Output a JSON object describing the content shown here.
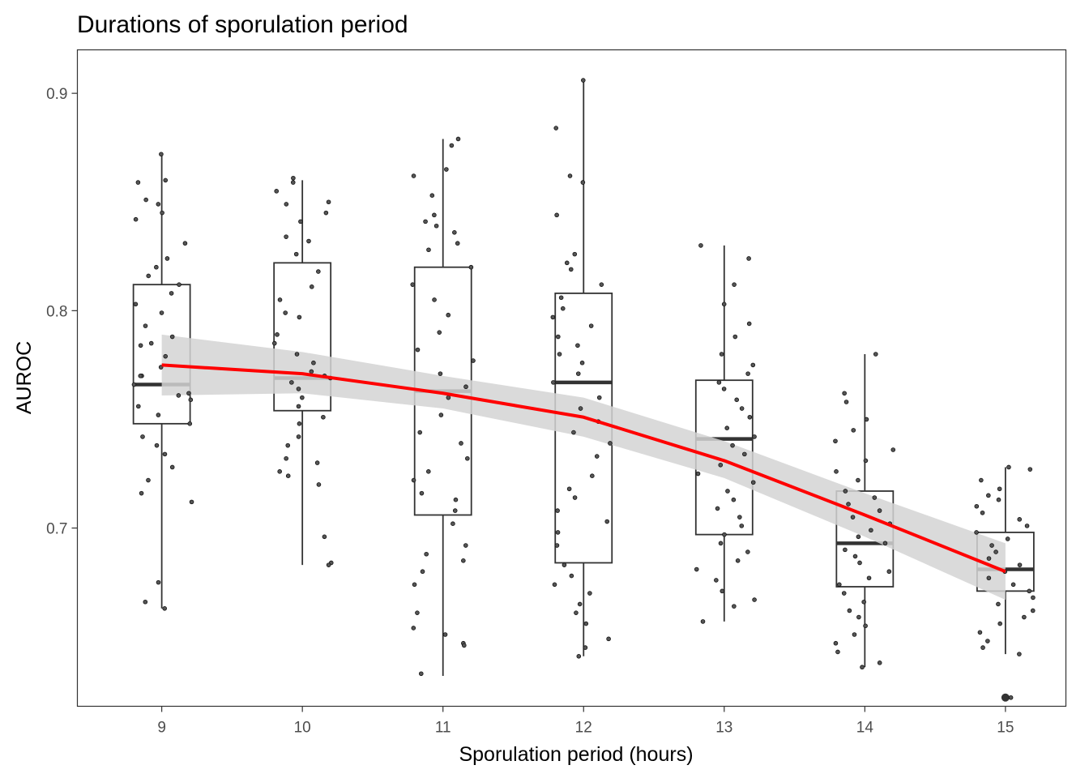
{
  "chart_data": {
    "type": "boxplot",
    "title": "Durations of sporulation period",
    "xlabel": "Sporulation period (hours)",
    "ylabel": "AUROC",
    "x_ticks": [
      "9",
      "10",
      "11",
      "12",
      "13",
      "14",
      "15"
    ],
    "y_ticks": [
      "0.7",
      "0.8",
      "0.9"
    ],
    "xlim": [
      8.4,
      15.43
    ],
    "ylim": [
      0.618,
      0.92
    ],
    "grid": false,
    "boxes": [
      {
        "x": 9,
        "min": 0.663,
        "q1": 0.748,
        "median": 0.766,
        "q3": 0.812,
        "max": 0.872
      },
      {
        "x": 10,
        "min": 0.683,
        "q1": 0.754,
        "median": 0.769,
        "q3": 0.822,
        "max": 0.86
      },
      {
        "x": 11,
        "min": 0.632,
        "q1": 0.706,
        "median": 0.763,
        "q3": 0.82,
        "max": 0.879
      },
      {
        "x": 12,
        "min": 0.641,
        "q1": 0.684,
        "median": 0.767,
        "q3": 0.808,
        "max": 0.906
      },
      {
        "x": 13,
        "min": 0.657,
        "q1": 0.697,
        "median": 0.741,
        "q3": 0.768,
        "max": 0.83
      },
      {
        "x": 14,
        "min": 0.636,
        "q1": 0.673,
        "median": 0.693,
        "q3": 0.717,
        "max": 0.78
      },
      {
        "x": 15,
        "min": 0.642,
        "q1": 0.671,
        "median": 0.681,
        "q3": 0.698,
        "max": 0.728
      }
    ],
    "outliers": [
      {
        "x": 15,
        "y": 0.622
      }
    ],
    "trend_line": {
      "color": "#ff0000",
      "x": [
        9,
        10,
        11,
        12,
        13,
        14,
        15
      ],
      "y": [
        0.775,
        0.771,
        0.762,
        0.751,
        0.731,
        0.706,
        0.68
      ],
      "ci_lower": [
        0.761,
        0.762,
        0.755,
        0.742,
        0.723,
        0.696,
        0.667
      ],
      "ci_upper": [
        0.789,
        0.781,
        0.77,
        0.76,
        0.74,
        0.716,
        0.693
      ],
      "band_color": "#d3d3d3"
    },
    "jitter_points": [
      {
        "x": 9,
        "y": 0.872
      },
      {
        "x": 9,
        "y": 0.86
      },
      {
        "x": 9,
        "y": 0.859
      },
      {
        "x": 9,
        "y": 0.851
      },
      {
        "x": 9,
        "y": 0.849
      },
      {
        "x": 9,
        "y": 0.845
      },
      {
        "x": 9,
        "y": 0.842
      },
      {
        "x": 9,
        "y": 0.831
      },
      {
        "x": 9,
        "y": 0.824
      },
      {
        "x": 9,
        "y": 0.82
      },
      {
        "x": 9,
        "y": 0.816
      },
      {
        "x": 9,
        "y": 0.812
      },
      {
        "x": 9,
        "y": 0.808
      },
      {
        "x": 9,
        "y": 0.803
      },
      {
        "x": 9,
        "y": 0.799
      },
      {
        "x": 9,
        "y": 0.793
      },
      {
        "x": 9,
        "y": 0.788
      },
      {
        "x": 9,
        "y": 0.784
      },
      {
        "x": 9,
        "y": 0.779
      },
      {
        "x": 9,
        "y": 0.774
      },
      {
        "x": 9,
        "y": 0.77
      },
      {
        "x": 9,
        "y": 0.766
      },
      {
        "x": 9,
        "y": 0.762
      },
      {
        "x": 9,
        "y": 0.759
      },
      {
        "x": 9,
        "y": 0.756
      },
      {
        "x": 9,
        "y": 0.752
      },
      {
        "x": 9,
        "y": 0.748
      },
      {
        "x": 9,
        "y": 0.742
      },
      {
        "x": 9,
        "y": 0.738
      },
      {
        "x": 9,
        "y": 0.734
      },
      {
        "x": 9,
        "y": 0.728
      },
      {
        "x": 9,
        "y": 0.722
      },
      {
        "x": 9,
        "y": 0.716
      },
      {
        "x": 9,
        "y": 0.712
      },
      {
        "x": 9,
        "y": 0.675
      },
      {
        "x": 9,
        "y": 0.666
      },
      {
        "x": 9,
        "y": 0.663
      },
      {
        "x": 9,
        "y": 0.785
      },
      {
        "x": 9,
        "y": 0.77
      },
      {
        "x": 9,
        "y": 0.761
      },
      {
        "x": 10,
        "y": 0.861
      },
      {
        "x": 10,
        "y": 0.859
      },
      {
        "x": 10,
        "y": 0.855
      },
      {
        "x": 10,
        "y": 0.85
      },
      {
        "x": 10,
        "y": 0.849
      },
      {
        "x": 10,
        "y": 0.845
      },
      {
        "x": 10,
        "y": 0.841
      },
      {
        "x": 10,
        "y": 0.834
      },
      {
        "x": 10,
        "y": 0.832
      },
      {
        "x": 10,
        "y": 0.826
      },
      {
        "x": 10,
        "y": 0.818
      },
      {
        "x": 10,
        "y": 0.811
      },
      {
        "x": 10,
        "y": 0.805
      },
      {
        "x": 10,
        "y": 0.799
      },
      {
        "x": 10,
        "y": 0.797
      },
      {
        "x": 10,
        "y": 0.789
      },
      {
        "x": 10,
        "y": 0.785
      },
      {
        "x": 10,
        "y": 0.78
      },
      {
        "x": 10,
        "y": 0.776
      },
      {
        "x": 10,
        "y": 0.772
      },
      {
        "x": 10,
        "y": 0.769
      },
      {
        "x": 10,
        "y": 0.767
      },
      {
        "x": 10,
        "y": 0.764
      },
      {
        "x": 10,
        "y": 0.76
      },
      {
        "x": 10,
        "y": 0.756
      },
      {
        "x": 10,
        "y": 0.751
      },
      {
        "x": 10,
        "y": 0.748
      },
      {
        "x": 10,
        "y": 0.742
      },
      {
        "x": 10,
        "y": 0.738
      },
      {
        "x": 10,
        "y": 0.732
      },
      {
        "x": 10,
        "y": 0.73
      },
      {
        "x": 10,
        "y": 0.726
      },
      {
        "x": 10,
        "y": 0.724
      },
      {
        "x": 10,
        "y": 0.72
      },
      {
        "x": 10,
        "y": 0.696
      },
      {
        "x": 10,
        "y": 0.684
      },
      {
        "x": 10,
        "y": 0.683
      },
      {
        "x": 10,
        "y": 0.77
      },
      {
        "x": 11,
        "y": 0.879
      },
      {
        "x": 11,
        "y": 0.876
      },
      {
        "x": 11,
        "y": 0.865
      },
      {
        "x": 11,
        "y": 0.862
      },
      {
        "x": 11,
        "y": 0.853
      },
      {
        "x": 11,
        "y": 0.844
      },
      {
        "x": 11,
        "y": 0.841
      },
      {
        "x": 11,
        "y": 0.839
      },
      {
        "x": 11,
        "y": 0.836
      },
      {
        "x": 11,
        "y": 0.831
      },
      {
        "x": 11,
        "y": 0.828
      },
      {
        "x": 11,
        "y": 0.82
      },
      {
        "x": 11,
        "y": 0.812
      },
      {
        "x": 11,
        "y": 0.805
      },
      {
        "x": 11,
        "y": 0.798
      },
      {
        "x": 11,
        "y": 0.79
      },
      {
        "x": 11,
        "y": 0.782
      },
      {
        "x": 11,
        "y": 0.777
      },
      {
        "x": 11,
        "y": 0.771
      },
      {
        "x": 11,
        "y": 0.765
      },
      {
        "x": 11,
        "y": 0.76
      },
      {
        "x": 11,
        "y": 0.752
      },
      {
        "x": 11,
        "y": 0.744
      },
      {
        "x": 11,
        "y": 0.739
      },
      {
        "x": 11,
        "y": 0.732
      },
      {
        "x": 11,
        "y": 0.726
      },
      {
        "x": 11,
        "y": 0.722
      },
      {
        "x": 11,
        "y": 0.716
      },
      {
        "x": 11,
        "y": 0.713
      },
      {
        "x": 11,
        "y": 0.708
      },
      {
        "x": 11,
        "y": 0.702
      },
      {
        "x": 11,
        "y": 0.692
      },
      {
        "x": 11,
        "y": 0.688
      },
      {
        "x": 11,
        "y": 0.685
      },
      {
        "x": 11,
        "y": 0.68
      },
      {
        "x": 11,
        "y": 0.674
      },
      {
        "x": 11,
        "y": 0.661
      },
      {
        "x": 11,
        "y": 0.654
      },
      {
        "x": 11,
        "y": 0.651
      },
      {
        "x": 11,
        "y": 0.647
      },
      {
        "x": 11,
        "y": 0.646
      },
      {
        "x": 11,
        "y": 0.633
      },
      {
        "x": 12,
        "y": 0.906
      },
      {
        "x": 12,
        "y": 0.884
      },
      {
        "x": 12,
        "y": 0.862
      },
      {
        "x": 12,
        "y": 0.859
      },
      {
        "x": 12,
        "y": 0.844
      },
      {
        "x": 12,
        "y": 0.826
      },
      {
        "x": 12,
        "y": 0.822
      },
      {
        "x": 12,
        "y": 0.819
      },
      {
        "x": 12,
        "y": 0.812
      },
      {
        "x": 12,
        "y": 0.806
      },
      {
        "x": 12,
        "y": 0.801
      },
      {
        "x": 12,
        "y": 0.797
      },
      {
        "x": 12,
        "y": 0.793
      },
      {
        "x": 12,
        "y": 0.788
      },
      {
        "x": 12,
        "y": 0.784
      },
      {
        "x": 12,
        "y": 0.78
      },
      {
        "x": 12,
        "y": 0.776
      },
      {
        "x": 12,
        "y": 0.771
      },
      {
        "x": 12,
        "y": 0.767
      },
      {
        "x": 12,
        "y": 0.76
      },
      {
        "x": 12,
        "y": 0.755
      },
      {
        "x": 12,
        "y": 0.749
      },
      {
        "x": 12,
        "y": 0.744
      },
      {
        "x": 12,
        "y": 0.739
      },
      {
        "x": 12,
        "y": 0.733
      },
      {
        "x": 12,
        "y": 0.724
      },
      {
        "x": 12,
        "y": 0.718
      },
      {
        "x": 12,
        "y": 0.714
      },
      {
        "x": 12,
        "y": 0.708
      },
      {
        "x": 12,
        "y": 0.703
      },
      {
        "x": 12,
        "y": 0.698
      },
      {
        "x": 12,
        "y": 0.692
      },
      {
        "x": 12,
        "y": 0.683
      },
      {
        "x": 12,
        "y": 0.678
      },
      {
        "x": 12,
        "y": 0.674
      },
      {
        "x": 12,
        "y": 0.67
      },
      {
        "x": 12,
        "y": 0.665
      },
      {
        "x": 12,
        "y": 0.661
      },
      {
        "x": 12,
        "y": 0.656
      },
      {
        "x": 12,
        "y": 0.649
      },
      {
        "x": 12,
        "y": 0.645
      },
      {
        "x": 12,
        "y": 0.641
      },
      {
        "x": 13,
        "y": 0.83
      },
      {
        "x": 13,
        "y": 0.824
      },
      {
        "x": 13,
        "y": 0.812
      },
      {
        "x": 13,
        "y": 0.803
      },
      {
        "x": 13,
        "y": 0.794
      },
      {
        "x": 13,
        "y": 0.788
      },
      {
        "x": 13,
        "y": 0.78
      },
      {
        "x": 13,
        "y": 0.775
      },
      {
        "x": 13,
        "y": 0.771
      },
      {
        "x": 13,
        "y": 0.767
      },
      {
        "x": 13,
        "y": 0.764
      },
      {
        "x": 13,
        "y": 0.759
      },
      {
        "x": 13,
        "y": 0.755
      },
      {
        "x": 13,
        "y": 0.751
      },
      {
        "x": 13,
        "y": 0.746
      },
      {
        "x": 13,
        "y": 0.742
      },
      {
        "x": 13,
        "y": 0.738
      },
      {
        "x": 13,
        "y": 0.734
      },
      {
        "x": 13,
        "y": 0.729
      },
      {
        "x": 13,
        "y": 0.725
      },
      {
        "x": 13,
        "y": 0.721
      },
      {
        "x": 13,
        "y": 0.717
      },
      {
        "x": 13,
        "y": 0.713
      },
      {
        "x": 13,
        "y": 0.709
      },
      {
        "x": 13,
        "y": 0.705
      },
      {
        "x": 13,
        "y": 0.701
      },
      {
        "x": 13,
        "y": 0.697
      },
      {
        "x": 13,
        "y": 0.693
      },
      {
        "x": 13,
        "y": 0.689
      },
      {
        "x": 13,
        "y": 0.685
      },
      {
        "x": 13,
        "y": 0.681
      },
      {
        "x": 13,
        "y": 0.676
      },
      {
        "x": 13,
        "y": 0.671
      },
      {
        "x": 13,
        "y": 0.667
      },
      {
        "x": 13,
        "y": 0.664
      },
      {
        "x": 13,
        "y": 0.657
      },
      {
        "x": 14,
        "y": 0.78
      },
      {
        "x": 14,
        "y": 0.762
      },
      {
        "x": 14,
        "y": 0.758
      },
      {
        "x": 14,
        "y": 0.75
      },
      {
        "x": 14,
        "y": 0.745
      },
      {
        "x": 14,
        "y": 0.74
      },
      {
        "x": 14,
        "y": 0.736
      },
      {
        "x": 14,
        "y": 0.731
      },
      {
        "x": 14,
        "y": 0.726
      },
      {
        "x": 14,
        "y": 0.722
      },
      {
        "x": 14,
        "y": 0.717
      },
      {
        "x": 14,
        "y": 0.714
      },
      {
        "x": 14,
        "y": 0.711
      },
      {
        "x": 14,
        "y": 0.708
      },
      {
        "x": 14,
        "y": 0.705
      },
      {
        "x": 14,
        "y": 0.702
      },
      {
        "x": 14,
        "y": 0.699
      },
      {
        "x": 14,
        "y": 0.696
      },
      {
        "x": 14,
        "y": 0.693
      },
      {
        "x": 14,
        "y": 0.69
      },
      {
        "x": 14,
        "y": 0.687
      },
      {
        "x": 14,
        "y": 0.684
      },
      {
        "x": 14,
        "y": 0.68
      },
      {
        "x": 14,
        "y": 0.677
      },
      {
        "x": 14,
        "y": 0.674
      },
      {
        "x": 14,
        "y": 0.67
      },
      {
        "x": 14,
        "y": 0.666
      },
      {
        "x": 14,
        "y": 0.662
      },
      {
        "x": 14,
        "y": 0.659
      },
      {
        "x": 14,
        "y": 0.655
      },
      {
        "x": 14,
        "y": 0.651
      },
      {
        "x": 14,
        "y": 0.647
      },
      {
        "x": 14,
        "y": 0.643
      },
      {
        "x": 14,
        "y": 0.638
      },
      {
        "x": 14,
        "y": 0.636
      },
      {
        "x": 15,
        "y": 0.728
      },
      {
        "x": 15,
        "y": 0.727
      },
      {
        "x": 15,
        "y": 0.722
      },
      {
        "x": 15,
        "y": 0.718
      },
      {
        "x": 15,
        "y": 0.715
      },
      {
        "x": 15,
        "y": 0.713
      },
      {
        "x": 15,
        "y": 0.71
      },
      {
        "x": 15,
        "y": 0.707
      },
      {
        "x": 15,
        "y": 0.704
      },
      {
        "x": 15,
        "y": 0.701
      },
      {
        "x": 15,
        "y": 0.698
      },
      {
        "x": 15,
        "y": 0.695
      },
      {
        "x": 15,
        "y": 0.692
      },
      {
        "x": 15,
        "y": 0.689
      },
      {
        "x": 15,
        "y": 0.686
      },
      {
        "x": 15,
        "y": 0.683
      },
      {
        "x": 15,
        "y": 0.68
      },
      {
        "x": 15,
        "y": 0.677
      },
      {
        "x": 15,
        "y": 0.674
      },
      {
        "x": 15,
        "y": 0.671
      },
      {
        "x": 15,
        "y": 0.668
      },
      {
        "x": 15,
        "y": 0.665
      },
      {
        "x": 15,
        "y": 0.662
      },
      {
        "x": 15,
        "y": 0.659
      },
      {
        "x": 15,
        "y": 0.656
      },
      {
        "x": 15,
        "y": 0.652
      },
      {
        "x": 15,
        "y": 0.648
      },
      {
        "x": 15,
        "y": 0.645
      },
      {
        "x": 15,
        "y": 0.642
      },
      {
        "x": 15,
        "y": 0.622
      }
    ]
  }
}
